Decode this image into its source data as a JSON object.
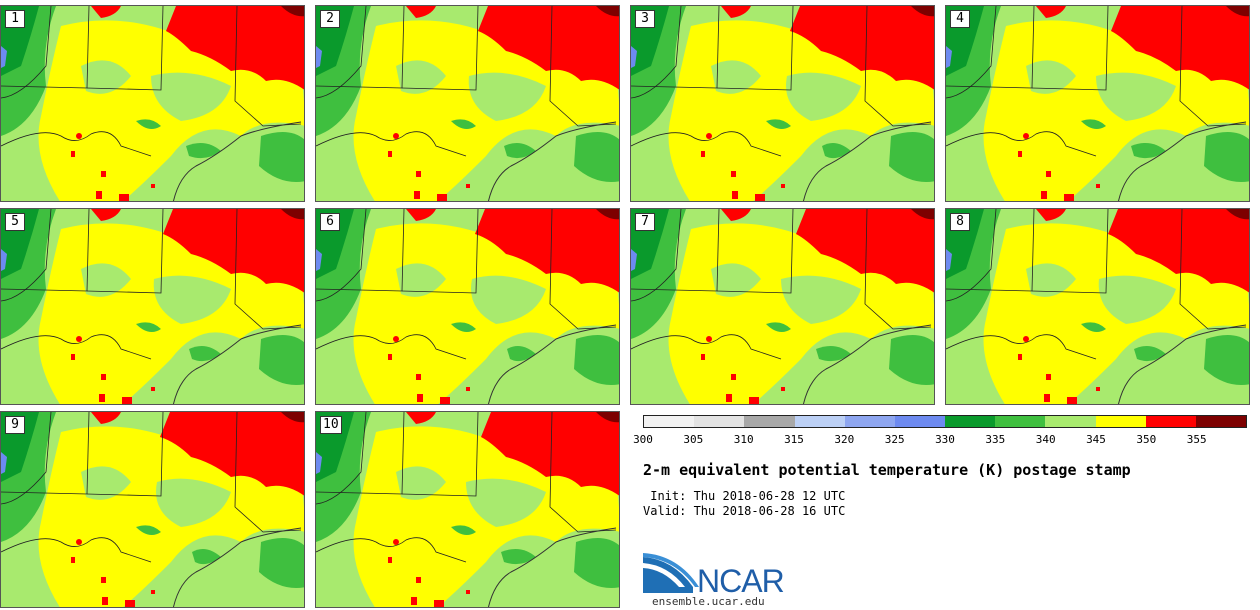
{
  "panels": [
    {
      "label": "1"
    },
    {
      "label": "2"
    },
    {
      "label": "3"
    },
    {
      "label": "4"
    },
    {
      "label": "5"
    },
    {
      "label": "6"
    },
    {
      "label": "7"
    },
    {
      "label": "8"
    },
    {
      "label": "9"
    },
    {
      "label": "10"
    }
  ],
  "colorbar": {
    "colors": [
      "#f2f2f2",
      "#e3e3e3",
      "#a8a8a8",
      "#bcd0f5",
      "#8ea6f0",
      "#6d8af0",
      "#0a9a2c",
      "#3fbf3f",
      "#a8ea6e",
      "#ffff00",
      "#ff0000",
      "#7d0000"
    ],
    "ticks": [
      "300",
      "305",
      "310",
      "315",
      "320",
      "325",
      "330",
      "335",
      "340",
      "345",
      "350",
      "355"
    ]
  },
  "title": "2-m equivalent potential temperature (K) postage stamp",
  "init": " Init: Thu 2018-06-28 12 UTC",
  "valid": "Valid: Thu 2018-06-28 16 UTC",
  "logo": {
    "text": "NCAR",
    "url": "ensemble.ucar.edu"
  }
}
